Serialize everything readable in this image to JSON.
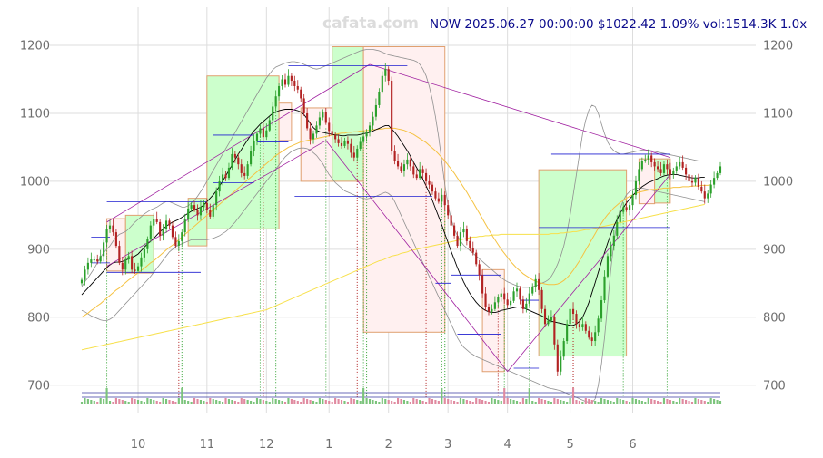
{
  "watermark": "cafata.com",
  "header": {
    "ticker": "NOW",
    "datetime": "2025.06.27 00:00:00",
    "price": "$1022.42",
    "change": "1.09%",
    "volume": "vol:1514.3K",
    "scale": "1.0x"
  },
  "colors": {
    "up": "#2ca02c",
    "down": "#b22222",
    "up_box_fill": "#ccffcc",
    "down_box_fill": "#fff0f0",
    "box_stroke": "#e0a070",
    "trend_line": "#a020a0",
    "level_line": "#1f1fd0",
    "ma_short": "#000000",
    "ma_mid": "#f5c242",
    "ma_long": "#f7e04a",
    "band": "#909090",
    "grid": "#dddddd"
  },
  "chart_data": {
    "type": "candlestick",
    "ylim": [
      665,
      1215
    ],
    "y_ticks": [
      700,
      800,
      900,
      1000,
      1100,
      1200
    ],
    "x_ticks": [
      {
        "label": "10",
        "index": 18
      },
      {
        "label": "11",
        "index": 40
      },
      {
        "label": "12",
        "index": 59
      },
      {
        "label": "1",
        "index": 79
      },
      {
        "label": "2",
        "index": 98
      },
      {
        "label": "3",
        "index": 117
      },
      {
        "label": "4",
        "index": 136
      },
      {
        "label": "5",
        "index": 156
      },
      {
        "label": "6",
        "index": 176
      }
    ],
    "closes": [
      855,
      870,
      880,
      885,
      885,
      882,
      890,
      910,
      930,
      935,
      925,
      905,
      880,
      870,
      885,
      890,
      870,
      868,
      875,
      888,
      900,
      915,
      935,
      945,
      940,
      920,
      930,
      942,
      935,
      918,
      905,
      912,
      925,
      945,
      960,
      965,
      958,
      950,
      962,
      968,
      958,
      948,
      965,
      985,
      1000,
      1010,
      1005,
      1020,
      1040,
      1035,
      1025,
      1012,
      1008,
      1025,
      1045,
      1060,
      1070,
      1078,
      1065,
      1075,
      1090,
      1110,
      1125,
      1140,
      1150,
      1142,
      1155,
      1148,
      1140,
      1135,
      1122,
      1100,
      1078,
      1062,
      1070,
      1082,
      1094,
      1102,
      1086,
      1074,
      1068,
      1062,
      1056,
      1052,
      1060,
      1055,
      1042,
      1035,
      1048,
      1058,
      1066,
      1073,
      1082,
      1095,
      1112,
      1132,
      1155,
      1165,
      1148,
      1045,
      1030,
      1022,
      1015,
      1025,
      1032,
      1022,
      1010,
      1005,
      1018,
      1012,
      1000,
      995,
      985,
      975,
      970,
      980,
      965,
      950,
      935,
      920,
      905,
      925,
      930,
      912,
      902,
      895,
      878,
      862,
      835,
      815,
      808,
      812,
      822,
      830,
      835,
      826,
      818,
      824,
      838,
      842,
      826,
      812,
      820,
      835,
      845,
      856,
      840,
      812,
      790,
      795,
      800,
      760,
      720,
      742,
      765,
      790,
      812,
      805,
      790,
      785,
      790,
      780,
      770,
      765,
      778,
      798,
      825,
      860,
      890,
      905,
      920,
      940,
      955,
      962,
      958,
      965,
      980,
      1000,
      1018,
      1030,
      1032,
      1038,
      1028,
      1022,
      1018,
      1012,
      1025,
      1018,
      1010,
      1016,
      1022,
      1028,
      1020,
      1010,
      1000,
      998,
      1005,
      992,
      985,
      975,
      982,
      995,
      1005,
      1012,
      1022
    ],
    "ma_short": [
      833,
      838,
      843,
      848,
      853,
      858,
      863,
      868,
      873,
      877,
      880,
      881,
      881,
      882,
      884,
      886,
      888,
      890,
      893,
      898,
      903,
      908,
      912,
      916,
      921,
      926,
      930,
      934,
      937,
      940,
      942,
      944,
      947,
      950,
      953,
      956,
      958,
      960,
      962,
      965,
      970,
      975,
      980,
      986,
      993,
      1000,
      1008,
      1016,
      1024,
      1032,
      1040,
      1047,
      1054,
      1061,
      1068,
      1074,
      1079,
      1084,
      1088,
      1092,
      1096,
      1100,
      1102,
      1104,
      1105,
      1106,
      1106,
      1106,
      1105,
      1104,
      1102,
      1098,
      1092,
      1085,
      1079,
      1075,
      1073,
      1072,
      1071,
      1070,
      1069,
      1068,
      1068,
      1067,
      1067,
      1068,
      1068,
      1068,
      1068,
      1069,
      1070,
      1071,
      1072,
      1074,
      1076,
      1078,
      1080,
      1082,
      1082,
      1077,
      1072,
      1066,
      1059,
      1052,
      1045,
      1037,
      1028,
      1020,
      1012,
      1003,
      993,
      983,
      972,
      960,
      948,
      936,
      923,
      910,
      897,
      885,
      873,
      862,
      852,
      843,
      835,
      828,
      822,
      817,
      813,
      810,
      808,
      807,
      807,
      808,
      810,
      811,
      812,
      813,
      814,
      815,
      815,
      814,
      812,
      810,
      808,
      806,
      804,
      802,
      799,
      796,
      794,
      793,
      792,
      791,
      790,
      789,
      788,
      788,
      790,
      794,
      800,
      810,
      822,
      836,
      851,
      866,
      881,
      895,
      909,
      922,
      934,
      944,
      953,
      961,
      968,
      974,
      979,
      984,
      988,
      992,
      995,
      998,
      1000,
      1002,
      1004,
      1006,
      1008,
      1009,
      1010,
      1010,
      1010,
      1009,
      1008,
      1007,
      1006,
      1005,
      1005,
      1005,
      1006,
      1006
    ],
    "ma_mid": [
      800,
      803,
      806,
      810,
      813,
      817,
      820,
      824,
      828,
      832,
      836,
      840,
      843,
      847,
      851,
      855,
      858,
      862,
      865,
      869,
      872,
      876,
      880,
      883,
      887,
      891,
      895,
      899,
      903,
      906,
      910,
      914,
      918,
      922,
      926,
      930,
      934,
      938,
      942,
      946,
      950,
      954,
      958,
      962,
      966,
      970,
      974,
      978,
      982,
      986,
      990,
      994,
      998,
      1002,
      1006,
      1010,
      1014,
      1018,
      1022,
      1026,
      1030,
      1034,
      1038,
      1041,
      1044,
      1047,
      1050,
      1052,
      1054,
      1056,
      1058,
      1059,
      1060,
      1061,
      1062,
      1063,
      1064,
      1065,
      1066,
      1067,
      1068,
      1069,
      1070,
      1071,
      1071,
      1072,
      1072,
      1073,
      1073,
      1074,
      1074,
      1075,
      1075,
      1076,
      1076,
      1077,
      1077,
      1078,
      1078,
      1078,
      1078,
      1077,
      1076,
      1075,
      1073,
      1071,
      1069,
      1066,
      1063,
      1060,
      1057,
      1053,
      1049,
      1045,
      1040,
      1035,
      1030,
      1024,
      1018,
      1012,
      1005,
      998,
      991,
      984,
      976,
      969,
      961,
      953,
      945,
      937,
      929,
      921,
      914,
      907,
      900,
      894,
      888,
      882,
      877,
      872,
      868,
      864,
      861,
      858,
      855,
      853,
      851,
      850,
      849,
      848,
      848,
      848,
      849,
      851,
      854,
      858,
      863,
      869,
      876,
      883,
      891,
      899,
      907,
      915,
      923,
      931,
      938,
      945,
      951,
      956,
      961,
      965,
      969,
      972,
      975,
      978,
      980,
      982,
      984,
      985,
      986,
      987,
      988,
      988,
      989,
      989,
      990,
      990,
      990,
      991,
      991,
      991,
      992,
      992,
      992,
      993,
      993,
      993,
      994,
      994,
      994,
      995
    ],
    "ma_long": [
      752,
      753,
      754,
      755,
      756,
      757,
      758,
      759,
      760,
      761,
      762,
      763,
      764,
      765,
      766,
      767,
      768,
      769,
      770,
      771,
      772,
      773,
      774,
      775,
      776,
      777,
      778,
      779,
      780,
      781,
      782,
      783,
      784,
      785,
      786,
      787,
      788,
      789,
      790,
      791,
      792,
      793,
      794,
      795,
      796,
      797,
      798,
      799,
      800,
      801,
      802,
      803,
      804,
      805,
      806,
      807,
      808,
      809,
      810,
      811,
      813,
      815,
      817,
      819,
      821,
      823,
      825,
      827,
      829,
      831,
      833,
      835,
      837,
      839,
      841,
      843,
      845,
      847,
      849,
      851,
      853,
      855,
      857,
      859,
      861,
      863,
      865,
      867,
      869,
      871,
      873,
      875,
      877,
      879,
      881,
      883,
      884,
      886,
      888,
      890,
      891,
      892,
      894,
      895,
      896,
      898,
      899,
      900,
      901,
      902,
      903,
      904,
      905,
      906,
      907,
      908,
      909,
      910,
      911,
      912,
      913,
      914,
      915,
      916,
      917,
      918,
      918,
      919,
      919,
      920,
      920,
      921,
      921,
      921,
      922,
      922,
      922,
      922,
      922,
      922,
      922,
      922,
      922,
      922,
      922,
      922,
      922,
      922,
      922,
      922,
      923,
      923,
      923,
      924,
      924,
      925,
      925,
      926,
      926,
      927,
      928,
      929,
      929,
      930,
      931,
      932,
      933,
      934,
      935,
      936,
      937,
      938,
      939,
      940,
      941,
      942,
      943,
      944,
      945,
      946,
      947,
      948,
      949,
      950,
      951,
      952,
      953,
      954,
      955,
      956,
      957,
      958,
      959,
      960,
      961,
      962,
      963,
      964,
      965,
      966
    ],
    "band_upper": [
      845,
      852,
      858,
      865,
      872,
      880,
      888,
      895,
      900,
      905,
      912,
      918,
      922,
      924,
      926,
      930,
      935,
      940,
      944,
      948,
      952,
      955,
      958,
      960,
      962,
      965,
      968,
      970,
      970,
      968,
      966,
      964,
      962,
      962,
      964,
      968,
      972,
      978,
      985,
      992,
      1000,
      1008,
      1016,
      1024,
      1032,
      1040,
      1048,
      1056,
      1064,
      1072,
      1080,
      1088,
      1096,
      1104,
      1112,
      1120,
      1128,
      1136,
      1144,
      1152,
      1158,
      1164,
      1168,
      1170,
      1172,
      1174,
      1175,
      1176,
      1176,
      1175,
      1174,
      1172,
      1170,
      1168,
      1166,
      1165,
      1166,
      1168,
      1170,
      1172,
      1174,
      1176,
      1178,
      1180,
      1182,
      1184,
      1186,
      1188,
      1190,
      1192,
      1193,
      1194,
      1194,
      1194,
      1193,
      1192,
      1190,
      1188,
      1186,
      1185,
      1184,
      1183,
      1182,
      1181,
      1180,
      1179,
      1178,
      1176,
      1172,
      1165,
      1155,
      1140,
      1120,
      1095,
      1065,
      1030,
      995,
      965,
      945,
      930,
      920,
      912,
      906,
      902,
      898,
      894,
      890,
      886,
      882,
      878,
      874,
      870,
      866,
      862,
      858,
      855,
      852,
      850,
      848,
      846,
      845,
      844,
      844,
      844,
      845,
      846,
      848,
      850,
      852,
      855,
      860,
      868,
      878,
      890,
      905,
      925,
      950,
      980,
      1010,
      1040,
      1070,
      1090,
      1105,
      1112,
      1110,
      1100,
      1085,
      1070,
      1058,
      1050,
      1045,
      1042,
      1040,
      1040,
      1041,
      1042,
      1043,
      1044,
      1045,
      1046,
      1046,
      1046,
      1045,
      1044,
      1043,
      1042,
      1041,
      1040,
      1039,
      1038,
      1037,
      1036,
      1035,
      1034,
      1033,
      1032,
      1031,
      1030
    ],
    "band_lower": [
      810,
      808,
      805,
      802,
      800,
      798,
      796,
      795,
      795,
      797,
      800,
      805,
      810,
      815,
      820,
      825,
      830,
      835,
      840,
      845,
      850,
      855,
      860,
      866,
      872,
      878,
      884,
      890,
      896,
      900,
      904,
      906,
      908,
      910,
      912,
      914,
      914,
      914,
      914,
      914,
      914,
      915,
      916,
      918,
      920,
      923,
      926,
      930,
      935,
      940,
      946,
      952,
      958,
      964,
      970,
      976,
      982,
      988,
      994,
      1000,
      1006,
      1012,
      1018,
      1024,
      1030,
      1036,
      1040,
      1044,
      1046,
      1048,
      1049,
      1049,
      1048,
      1046,
      1042,
      1038,
      1032,
      1026,
      1018,
      1010,
      1004,
      998,
      994,
      990,
      986,
      984,
      982,
      980,
      978,
      976,
      975,
      974,
      975,
      976,
      978,
      980,
      982,
      984,
      982,
      978,
      970,
      960,
      950,
      940,
      930,
      920,
      910,
      900,
      890,
      880,
      870,
      860,
      850,
      840,
      830,
      820,
      810,
      800,
      790,
      780,
      770,
      762,
      756,
      752,
      748,
      745,
      742,
      740,
      738,
      736,
      734,
      732,
      730,
      728,
      726,
      724,
      722,
      720,
      718,
      716,
      714,
      712,
      710,
      708,
      706,
      704,
      702,
      700,
      698,
      696,
      695,
      694,
      693,
      692,
      690,
      688,
      686,
      684,
      682,
      680,
      678,
      676,
      675,
      674,
      680,
      700,
      730,
      770,
      820,
      870,
      910,
      940,
      960,
      972,
      980,
      985,
      988,
      990,
      990,
      990,
      989,
      988,
      987,
      986,
      985,
      984,
      983,
      982,
      981,
      980,
      979,
      978,
      977,
      976,
      975,
      974,
      973,
      972,
      971,
      970
    ],
    "trend_lines": [
      {
        "from": [
          8,
          940
        ],
        "to": [
          92,
          1172
        ]
      },
      {
        "from": [
          8,
          875
        ],
        "to": [
          78,
          1060
        ]
      },
      {
        "from": [
          92,
          1172
        ],
        "to": [
          188,
          1035
        ]
      },
      {
        "from": [
          78,
          1060
        ],
        "to": [
          136,
          720
        ]
      },
      {
        "from": [
          136,
          720
        ],
        "to": [
          188,
          1010
        ]
      }
    ],
    "levels": [
      {
        "price": 970,
        "x0": 8,
        "x1": 40
      },
      {
        "price": 866,
        "x0": 8,
        "x1": 38
      },
      {
        "price": 1068,
        "x0": 42,
        "x1": 55
      },
      {
        "price": 998,
        "x0": 42,
        "x1": 55
      },
      {
        "price": 1058,
        "x0": 56,
        "x1": 66
      },
      {
        "price": 1170,
        "x0": 66,
        "x1": 104
      },
      {
        "price": 978,
        "x0": 68,
        "x1": 112
      },
      {
        "price": 915,
        "x0": 113,
        "x1": 118
      },
      {
        "price": 850,
        "x0": 113,
        "x1": 118
      },
      {
        "price": 862,
        "x0": 118,
        "x1": 134
      },
      {
        "price": 775,
        "x0": 120,
        "x1": 134
      },
      {
        "price": 825,
        "x0": 140,
        "x1": 146
      },
      {
        "price": 725,
        "x0": 138,
        "x1": 146
      },
      {
        "price": 1040,
        "x0": 150,
        "x1": 188
      },
      {
        "price": 932,
        "x0": 146,
        "x1": 188
      },
      {
        "price": 918,
        "x0": 3,
        "x1": 9
      },
      {
        "price": 880,
        "x0": 3,
        "x1": 9
      }
    ],
    "zones": [
      {
        "x0": 8,
        "x1": 14,
        "top": 945,
        "bottom": 868,
        "kind": "down"
      },
      {
        "x0": 14,
        "x1": 23,
        "top": 950,
        "bottom": 865,
        "kind": "up"
      },
      {
        "x0": 34,
        "x1": 40,
        "top": 975,
        "bottom": 905,
        "kind": "up"
      },
      {
        "x0": 40,
        "x1": 63,
        "top": 1155,
        "bottom": 930,
        "kind": "up"
      },
      {
        "x0": 63,
        "x1": 67,
        "top": 1115,
        "bottom": 1060,
        "kind": "down"
      },
      {
        "x0": 70,
        "x1": 80,
        "top": 1108,
        "bottom": 1000,
        "kind": "down"
      },
      {
        "x0": 80,
        "x1": 90,
        "top": 1198,
        "bottom": 1000,
        "kind": "up"
      },
      {
        "x0": 90,
        "x1": 116,
        "top": 1198,
        "bottom": 778,
        "kind": "down"
      },
      {
        "x0": 128,
        "x1": 135,
        "top": 870,
        "bottom": 720,
        "kind": "down"
      },
      {
        "x0": 146,
        "x1": 174,
        "top": 1017,
        "bottom": 743,
        "kind": "up"
      },
      {
        "x0": 178,
        "x1": 183,
        "top": 1033,
        "bottom": 967,
        "kind": "down"
      },
      {
        "x0": 183,
        "x1": 188,
        "top": 1033,
        "bottom": 968,
        "kind": "up"
      }
    ],
    "markers": [
      8,
      31,
      32,
      57,
      58,
      62,
      78,
      88,
      90,
      91,
      110,
      115,
      116,
      133,
      135,
      143,
      157,
      173,
      187
    ],
    "spike_bars": [
      8,
      32,
      90,
      115,
      135,
      143,
      157
    ]
  }
}
